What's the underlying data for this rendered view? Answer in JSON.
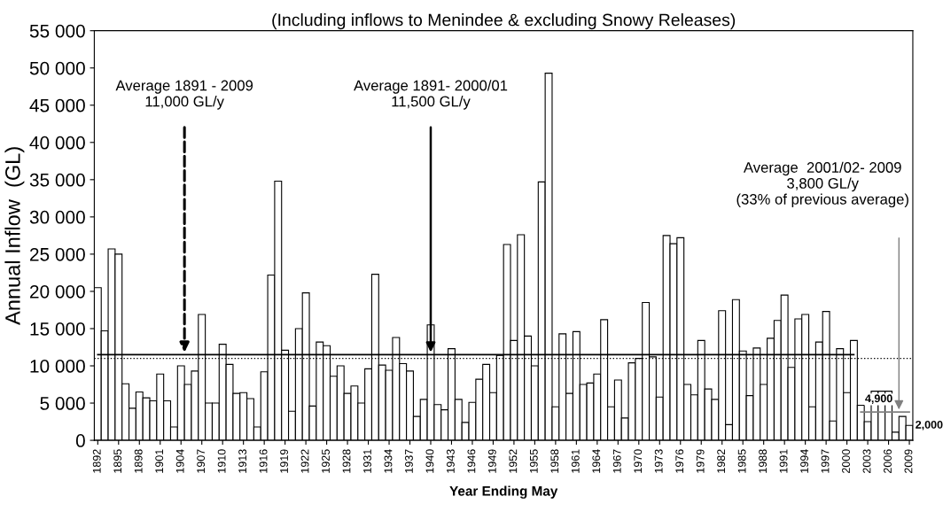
{
  "chart_data": {
    "type": "bar",
    "title": "(Including inflows to Menindee & excluding Snowy Releases)",
    "xlabel": "Year Ending May",
    "ylabel": "Annual Inflow  (GL)",
    "categories": [
      "1892",
      null,
      null,
      "1895",
      null,
      null,
      "1898",
      null,
      null,
      "1901",
      null,
      null,
      "1904",
      null,
      null,
      "1907",
      null,
      null,
      "1910",
      null,
      null,
      "1913",
      null,
      null,
      "1916",
      null,
      null,
      "1919",
      null,
      null,
      "1922",
      null,
      null,
      "1925",
      null,
      null,
      "1928",
      null,
      null,
      "1931",
      null,
      null,
      "1934",
      null,
      null,
      "1937",
      null,
      null,
      "1940",
      null,
      null,
      "1943",
      null,
      null,
      "1946",
      null,
      null,
      "1949",
      null,
      null,
      "1952",
      null,
      null,
      "1955",
      null,
      null,
      "1958",
      null,
      null,
      "1961",
      null,
      null,
      "1964",
      null,
      null,
      "1967",
      null,
      null,
      "1970",
      null,
      null,
      "1973",
      null,
      null,
      "1976",
      null,
      null,
      "1979",
      null,
      null,
      "1982",
      null,
      null,
      "1985",
      null,
      null,
      "1988",
      null,
      null,
      "1991",
      null,
      null,
      "1994",
      null,
      null,
      "1997",
      null,
      null,
      "2000",
      null,
      null,
      "2003",
      null,
      null,
      "2006",
      null,
      null,
      "2009"
    ],
    "series": [
      {
        "color": "#ffffff",
        "values": [
          20500,
          14700,
          25700,
          25000,
          7600,
          4300,
          6500,
          5700,
          5300,
          8900,
          5300,
          1800,
          10000,
          7500,
          9300,
          16900,
          5000,
          5000,
          12900,
          10200,
          6300,
          6400,
          5600,
          1800,
          9200,
          22200,
          34800,
          12100,
          3900,
          15000,
          19800,
          4600,
          13200,
          12700,
          8600,
          10000,
          6300,
          7300,
          5000,
          9600,
          22300,
          10100,
          9400,
          13800,
          10300,
          9300,
          3200,
          5500,
          15500,
          4800,
          4100,
          12300,
          5500,
          2400,
          5100,
          8200,
          10200,
          6400,
          11400,
          26300,
          13400,
          27600,
          14000,
          10000,
          34700,
          49300,
          4500,
          14300,
          6300,
          14600,
          7500,
          7700,
          8900,
          16200,
          4500,
          8100,
          3000,
          10400,
          11000,
          18500,
          11200,
          5800,
          27500,
          26400,
          27200,
          7500,
          6100,
          13400,
          6900,
          5500,
          17400,
          2100,
          18900,
          12000,
          6000,
          12400,
          7500,
          13700,
          16100,
          19500,
          9800,
          16300,
          16900,
          4500,
          13200,
          17300,
          2600,
          12300,
          6400,
          13400,
          4700,
          2500,
          6600,
          6600,
          6600,
          1100,
          3200,
          2000
        ]
      },
      {
        "type": "line",
        "color": "#000000",
        "line_style": "solid",
        "values": [
          11500,
          11500,
          11500,
          11500,
          11500,
          11500,
          11500,
          11500,
          11500,
          11500,
          11500,
          11500,
          11500,
          11500,
          11500,
          11500,
          11500,
          11500,
          11500,
          11500,
          11500,
          11500,
          11500,
          11500,
          11500,
          11500,
          11500,
          11500,
          11500,
          11500,
          11500,
          11500,
          11500,
          11500,
          11500,
          11500,
          11500,
          11500,
          11500,
          11500,
          11500,
          11500,
          11500,
          11500,
          11500,
          11500,
          11500,
          11500,
          11500,
          11500,
          11500,
          11500,
          11500,
          11500,
          11500,
          11500,
          11500,
          11500,
          11500,
          11500,
          11500,
          11500,
          11500,
          11500,
          11500,
          11500,
          11500,
          11500,
          11500,
          11500,
          11500,
          11500,
          11500,
          11500,
          11500,
          11500,
          11500,
          11500,
          11500,
          11500,
          11500,
          11500,
          11500,
          11500,
          11500,
          11500,
          11500,
          11500,
          11500,
          11500,
          11500,
          11500,
          11500,
          11500,
          11500,
          11500,
          11500,
          11500,
          11500,
          11500,
          11500,
          11500,
          11500,
          11500,
          11500,
          11500,
          11500,
          11500,
          11500,
          11500,
          null,
          null,
          null,
          null,
          null,
          null,
          null,
          null
        ]
      },
      {
        "type": "line",
        "color": "#808080",
        "line_style": "solid",
        "values": [
          null,
          null,
          null,
          null,
          null,
          null,
          null,
          null,
          null,
          null,
          null,
          null,
          null,
          null,
          null,
          null,
          null,
          null,
          null,
          null,
          null,
          null,
          null,
          null,
          null,
          null,
          null,
          null,
          null,
          null,
          null,
          null,
          null,
          null,
          null,
          null,
          null,
          null,
          null,
          null,
          null,
          null,
          null,
          null,
          null,
          null,
          null,
          null,
          null,
          null,
          null,
          null,
          null,
          null,
          null,
          null,
          null,
          null,
          null,
          null,
          null,
          null,
          null,
          null,
          null,
          null,
          null,
          null,
          null,
          null,
          null,
          null,
          null,
          null,
          null,
          null,
          null,
          null,
          null,
          null,
          null,
          null,
          null,
          null,
          null,
          null,
          null,
          null,
          null,
          null,
          null,
          null,
          null,
          null,
          null,
          null,
          null,
          null,
          null,
          null,
          null,
          null,
          null,
          null,
          null,
          null,
          null,
          null,
          null,
          null,
          3800,
          3800,
          3800,
          3800,
          3800,
          3800,
          3800,
          3800
        ]
      }
    ],
    "ylim": [
      0,
      55000
    ],
    "yticks": [
      {
        "value": 0,
        "label": "0"
      },
      {
        "value": 5000,
        "label": "5 000"
      },
      {
        "value": 10000,
        "label": "10 000"
      },
      {
        "value": 15000,
        "label": "15 000"
      },
      {
        "value": 20000,
        "label": "20 000"
      },
      {
        "value": 25000,
        "label": "25 000"
      },
      {
        "value": 30000,
        "label": "30 000"
      },
      {
        "value": 35000,
        "label": "35 000"
      },
      {
        "value": 40000,
        "label": "40 000"
      },
      {
        "value": 45000,
        "label": "45 000"
      },
      {
        "value": 50000,
        "label": "50 000"
      },
      {
        "value": 55000,
        "label": "55 000"
      }
    ],
    "ref_lines": [
      {
        "axis": "y",
        "value": 11000,
        "color": "#000000",
        "line_style": "dotted"
      }
    ],
    "annotations": [
      {
        "text": "Average 1891 - 2009\n11,000 GL/y",
        "x": "1904",
        "y": 11500
      },
      {
        "text": "Average 1891- 2000/01\n11,500 GL/y",
        "x": "1940",
        "y": 11500
      },
      "Average  2001/02- 2009\n3,800 GL/y\n(33% of previous average)",
      "4,900",
      "2,000"
    ],
    "grid": false
  }
}
